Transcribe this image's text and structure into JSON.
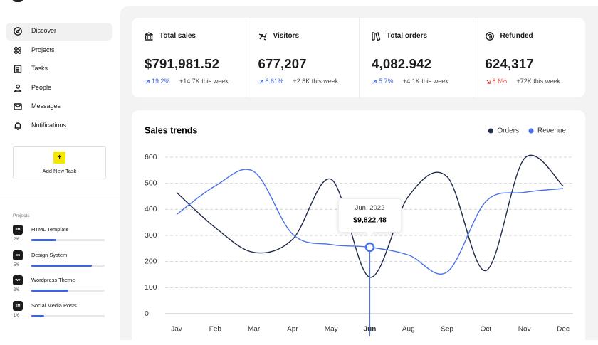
{
  "sidebar": {
    "nav": [
      "Discover",
      "Projects",
      "Tasks",
      "People",
      "Messages",
      "Notifications"
    ],
    "active": 0,
    "add_task": {
      "icon": "+",
      "label": "Add New Task"
    },
    "projects_title": "Projects",
    "projects": [
      {
        "badge": "PM",
        "name": "HTML Template",
        "count": "2/6",
        "progress": 0.34
      },
      {
        "badge": "DS",
        "name": "Design System",
        "count": "5/6",
        "progress": 0.83
      },
      {
        "badge": "WT",
        "name": "Wordpress Theme",
        "count": "3/6",
        "progress": 0.5
      },
      {
        "badge": "SM",
        "name": "Social Media Posts",
        "count": "1/6",
        "progress": 0.17
      }
    ]
  },
  "stats": [
    {
      "label": "Total sales",
      "value": "$791,981.52",
      "change": "19.2%",
      "direction": "up",
      "note": "+14.7K this week"
    },
    {
      "label": "Visitors",
      "value": "677,207",
      "change": "8.61%",
      "direction": "up",
      "note": "+2.8K this week"
    },
    {
      "label": "Total orders",
      "value": "4,082.942",
      "change": "5.7%",
      "direction": "up",
      "note": "+4.1K this week"
    },
    {
      "label": "Refunded",
      "value": "624,317",
      "change": "8.6%",
      "direction": "down",
      "note": "+72K this week"
    }
  ],
  "chart_data": {
    "type": "line",
    "title": "Sales trends",
    "categories": [
      "Jav",
      "Feb",
      "Mar",
      "Apr",
      "May",
      "Jun",
      "Aug",
      "Sep",
      "Oct",
      "Nov",
      "Dec"
    ],
    "series": [
      {
        "name": "Orders",
        "color": "#1e2a4a",
        "values": [
          465,
          330,
          235,
          285,
          515,
          140,
          450,
          525,
          165,
          595,
          490
        ]
      },
      {
        "name": "Revenue",
        "color": "#4a72e8",
        "values": [
          380,
          490,
          545,
          305,
          265,
          255,
          225,
          160,
          430,
          465,
          480
        ]
      }
    ],
    "ylim": [
      0,
      600
    ],
    "yticks": [
      0,
      100,
      200,
      300,
      400,
      500,
      600
    ],
    "grid": true,
    "highlight": {
      "index": 5,
      "series": 1,
      "label": "Jun, 2022",
      "value": "$9,822.48"
    }
  }
}
